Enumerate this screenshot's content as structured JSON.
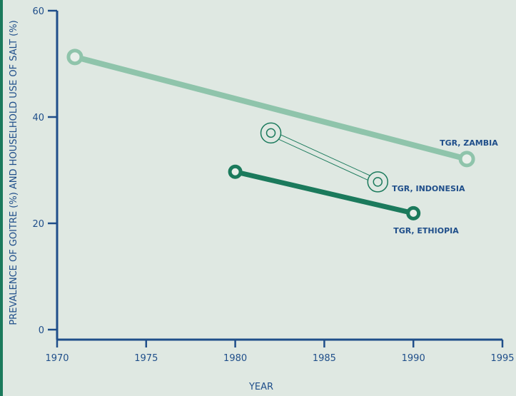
{
  "chart_data": {
    "type": "line",
    "title": "",
    "xlabel": "YEAR",
    "ylabel": "PREVALENCE OF GOITRE (%) AND HOUSELHOLD USE OF SALT (%)",
    "xlim": [
      1970,
      1995
    ],
    "ylim": [
      0,
      60
    ],
    "x_ticks": [
      1970,
      1975,
      1980,
      1985,
      1990,
      1995
    ],
    "y_ticks": [
      0,
      20,
      40,
      60
    ],
    "grid": false,
    "series": [
      {
        "name": "TGR, ZAMBIA",
        "color": "#8fc4ab",
        "style": "thick",
        "points": [
          {
            "x": 1971,
            "y": 51.3
          },
          {
            "x": 1993,
            "y": 32.1
          }
        ]
      },
      {
        "name": "TGR, INDONESIA",
        "color": "#1b7a5c",
        "style": "outline",
        "points": [
          {
            "x": 1982,
            "y": 37.0
          },
          {
            "x": 1988,
            "y": 27.8
          }
        ]
      },
      {
        "name": "TGR, ETHIOPIA",
        "color": "#1b7a5c",
        "style": "thick",
        "points": [
          {
            "x": 1980,
            "y": 29.7
          },
          {
            "x": 1990,
            "y": 21.9
          }
        ]
      }
    ]
  }
}
